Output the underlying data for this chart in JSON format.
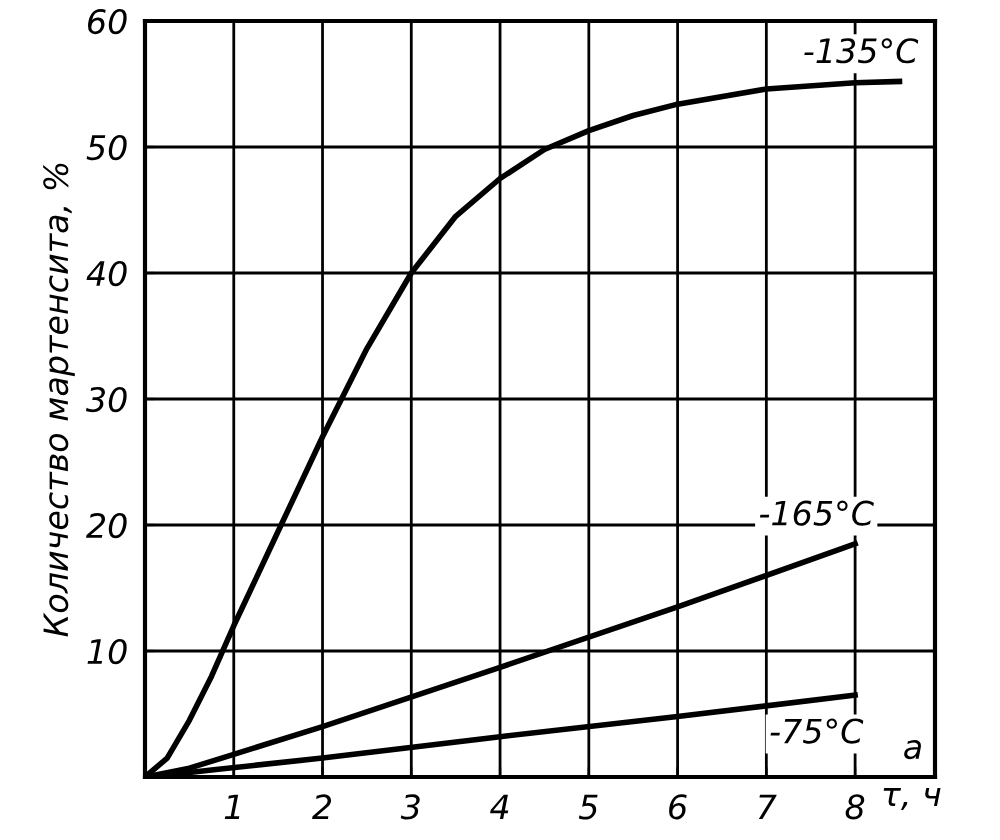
{
  "chart_data": {
    "type": "line",
    "xlabel": "τ, ч",
    "ylabel": "Количество мартенсита, %",
    "xlim": [
      0,
      8.9
    ],
    "ylim": [
      0,
      60
    ],
    "xticks": [
      1,
      2,
      3,
      4,
      5,
      6,
      7,
      8
    ],
    "yticks": [
      10,
      20,
      30,
      40,
      50,
      60
    ],
    "grid": true,
    "legend": false,
    "marker": "none",
    "line_style": "solid",
    "series": [
      {
        "name": "-135°C",
        "color": "#000000",
        "x": [
          0,
          0.25,
          0.5,
          0.75,
          1,
          1.5,
          2,
          2.5,
          3,
          3.5,
          4,
          4.5,
          5,
          5.5,
          6,
          7,
          8,
          8.5
        ],
        "values": [
          0,
          1.5,
          4.5,
          8,
          12,
          19.5,
          27,
          34,
          40,
          44.5,
          47.5,
          49.8,
          51.3,
          52.5,
          53.4,
          54.6,
          55.1,
          55.2
        ]
      },
      {
        "name": "-165°C",
        "color": "#000000",
        "x": [
          0,
          0.5,
          1,
          2,
          4,
          6,
          8
        ],
        "values": [
          0,
          0.7,
          1.8,
          4,
          8.7,
          13.5,
          18.5
        ]
      },
      {
        "name": "-75°C",
        "color": "#000000",
        "x": [
          0,
          0.3,
          0.8,
          2,
          4,
          6,
          8
        ],
        "values": [
          0,
          0.2,
          0.6,
          1.5,
          3.2,
          4.8,
          6.5
        ]
      }
    ],
    "annotations": [
      "а"
    ]
  }
}
